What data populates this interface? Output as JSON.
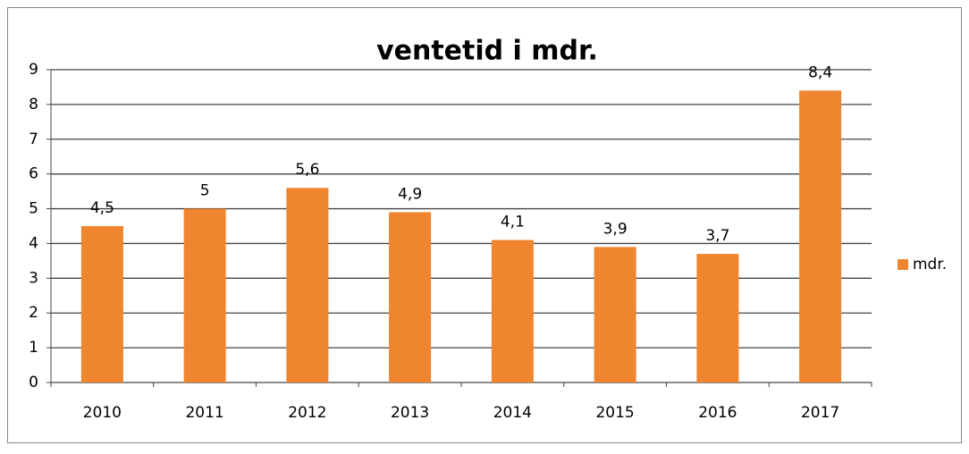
{
  "chart_data": {
    "type": "bar",
    "title": "ventetid i mdr.",
    "categories": [
      "2010",
      "2011",
      "2012",
      "2013",
      "2014",
      "2015",
      "2016",
      "2017"
    ],
    "series": [
      {
        "name": "mdr.",
        "color": "#f0852f",
        "values": [
          4.5,
          5,
          5.6,
          4.9,
          4.1,
          3.9,
          3.7,
          8.4
        ],
        "value_labels": [
          "4,5",
          "5",
          "5,6",
          "4,9",
          "4,1",
          "3,9",
          "3,7",
          "8,4"
        ]
      }
    ],
    "ylim": [
      0,
      9
    ],
    "yticks": [
      0,
      1,
      2,
      3,
      4,
      5,
      6,
      7,
      8,
      9
    ],
    "grid": true,
    "legend": "right"
  }
}
